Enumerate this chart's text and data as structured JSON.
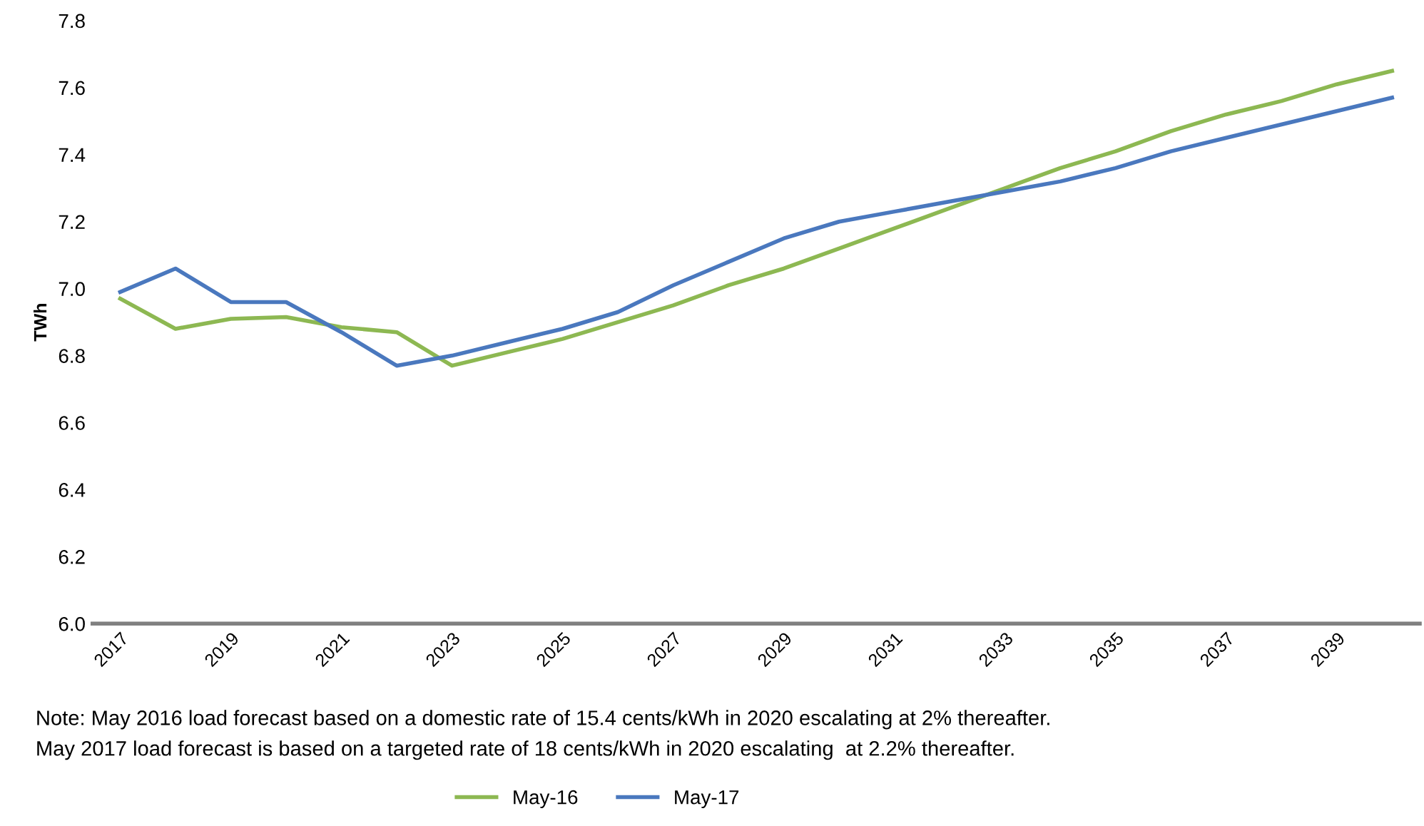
{
  "chart_data": {
    "type": "line",
    "ylabel": "TWh",
    "categories": [
      "2017",
      null,
      "2019",
      null,
      "2021",
      null,
      "2023",
      null,
      "2025",
      null,
      "2027",
      null,
      "2029",
      null,
      "2031",
      null,
      "2033",
      null,
      "2035",
      null,
      "2037",
      null,
      "2039",
      null
    ],
    "series": [
      {
        "name": "May-16",
        "color": "#8db852",
        "values": [
          6.97,
          6.88,
          6.91,
          6.915,
          6.885,
          6.87,
          6.77,
          6.81,
          6.85,
          6.9,
          6.95,
          7.01,
          7.06,
          7.12,
          7.18,
          7.24,
          7.3,
          7.36,
          7.41,
          7.47,
          7.52,
          7.56,
          7.61,
          7.65
        ]
      },
      {
        "name": "May-17",
        "color": "#4a78be",
        "values": [
          6.99,
          7.06,
          6.96,
          6.96,
          6.87,
          6.77,
          6.8,
          6.84,
          6.88,
          6.93,
          7.01,
          7.08,
          7.15,
          7.2,
          7.23,
          7.26,
          7.29,
          7.32,
          7.36,
          7.41,
          7.45,
          7.49,
          7.53,
          7.57
        ]
      }
    ],
    "ylim": [
      6.0,
      7.8
    ],
    "yticks": [
      {
        "value": 6.0,
        "label": "6.0"
      },
      6.2,
      6.4,
      6.6,
      6.8,
      {
        "value": 7.0,
        "label": "7.0"
      },
      7.2,
      7.4,
      7.6,
      7.8
    ],
    "grid": false,
    "legend": "bottom",
    "marker": "none",
    "line_style": "solid",
    "annotations": [
      "Note: May 2016 load forecast based on a domestic rate of 15.4 cents/kWh in 2020 escalating at 2% thereafter.",
      "May 2017 load forecast is based on a targeted rate of 18 cents/kWh in 2020 escalating  at 2.2% thereafter."
    ]
  }
}
